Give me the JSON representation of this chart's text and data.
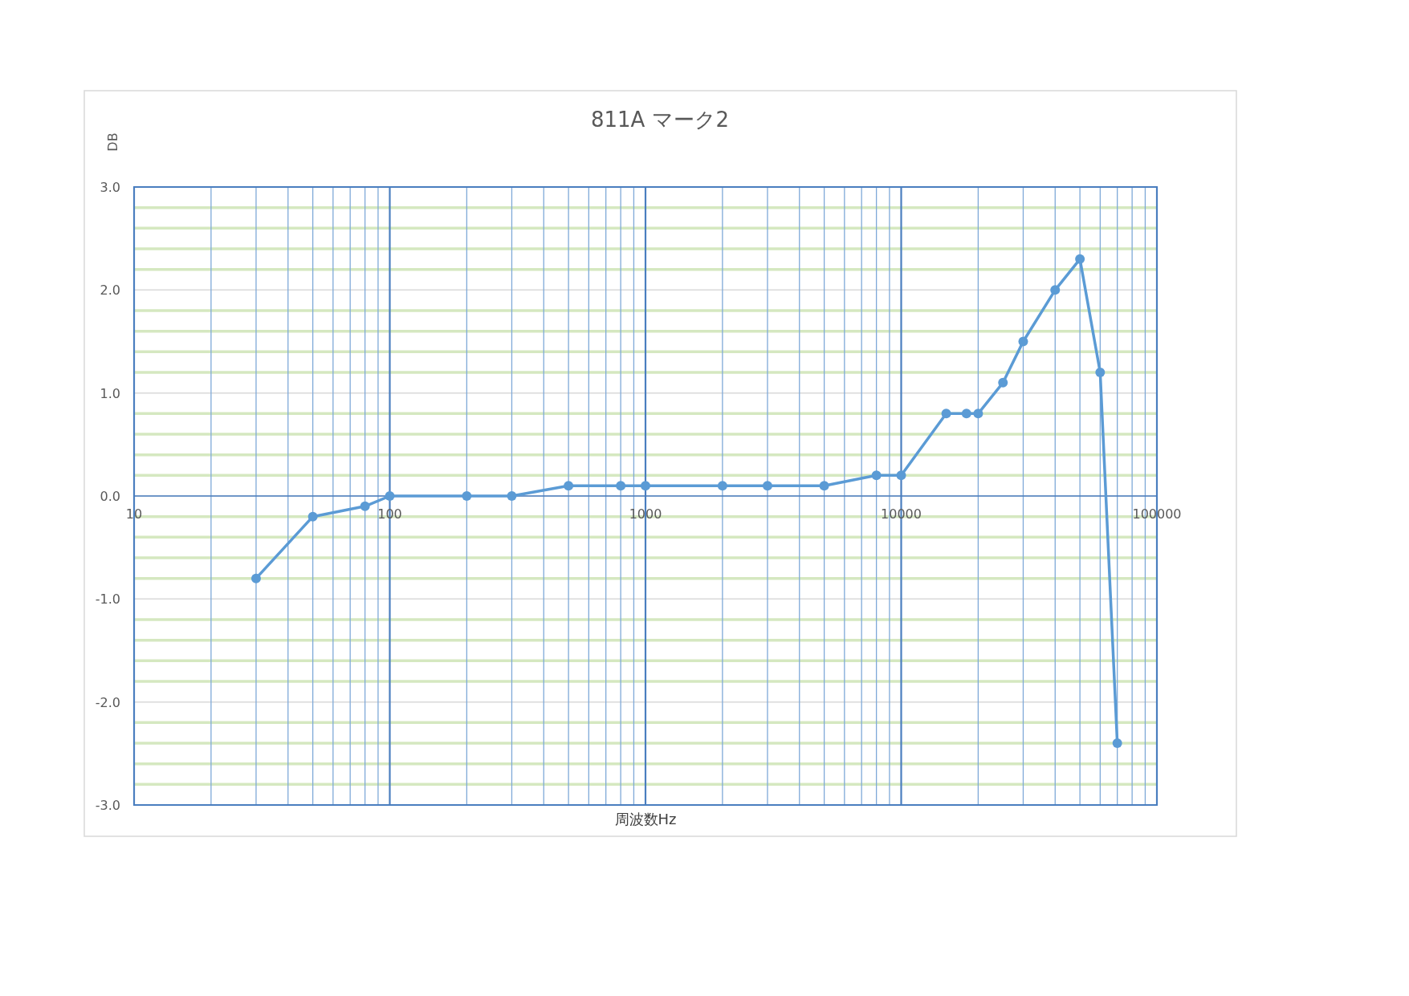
{
  "chart_data": {
    "type": "line",
    "title": "811A マーク2",
    "xlabel": "周波数Hz",
    "ylabel": "DB",
    "log": "x",
    "grid": true,
    "marker": "circle",
    "line_style": "solid",
    "xlim": [
      10,
      100000
    ],
    "xticks": [
      10,
      {
        "value": 20,
        "label": null
      },
      {
        "value": 30,
        "label": null
      },
      {
        "value": 40,
        "label": null
      },
      {
        "value": 50,
        "label": null
      },
      {
        "value": 60,
        "label": null
      },
      {
        "value": 70,
        "label": null
      },
      {
        "value": 80,
        "label": null
      },
      {
        "value": 90,
        "label": null
      },
      100,
      {
        "value": 200,
        "label": null
      },
      {
        "value": 300,
        "label": null
      },
      {
        "value": 400,
        "label": null
      },
      {
        "value": 500,
        "label": null
      },
      {
        "value": 600,
        "label": null
      },
      {
        "value": 700,
        "label": null
      },
      {
        "value": 800,
        "label": null
      },
      {
        "value": 900,
        "label": null
      },
      1000,
      {
        "value": 2000,
        "label": null
      },
      {
        "value": 3000,
        "label": null
      },
      {
        "value": 4000,
        "label": null
      },
      {
        "value": 5000,
        "label": null
      },
      {
        "value": 6000,
        "label": null
      },
      {
        "value": 7000,
        "label": null
      },
      {
        "value": 8000,
        "label": null
      },
      {
        "value": 9000,
        "label": null
      },
      10000,
      {
        "value": 20000,
        "label": null
      },
      {
        "value": 30000,
        "label": null
      },
      {
        "value": 40000,
        "label": null
      },
      {
        "value": 50000,
        "label": null
      },
      {
        "value": 60000,
        "label": null
      },
      {
        "value": 70000,
        "label": null
      },
      {
        "value": 80000,
        "label": null
      },
      {
        "value": 90000,
        "label": null
      },
      100000
    ],
    "ylim": [
      -3,
      3
    ],
    "yticks": [
      {
        "value": 3,
        "label": "3.0"
      },
      {
        "value": 2,
        "label": "2.0"
      },
      {
        "value": 1,
        "label": "1.0"
      },
      {
        "value": 0,
        "label": "0.0"
      },
      {
        "value": -1,
        "label": "-1.0"
      },
      {
        "value": -2,
        "label": "-2.0"
      },
      {
        "value": -3,
        "label": "-3.0"
      }
    ],
    "x": [
      30,
      50,
      80,
      100,
      200,
      300,
      500,
      800,
      1000,
      2000,
      3000,
      5000,
      8000,
      10000,
      15000,
      18000,
      20000,
      25000,
      30000,
      40000,
      50000,
      60000,
      70000
    ],
    "series": [
      {
        "color": "#5b9bd5",
        "values": [
          -0.8,
          -0.2,
          -0.1,
          0,
          0,
          0,
          0.1,
          0.1,
          0.1,
          0.1,
          0.1,
          0.1,
          0.2,
          0.2,
          0.8,
          0.8,
          0.8,
          1.1,
          1.5,
          2.0,
          2.3,
          1.2,
          -2.4
        ]
      }
    ]
  }
}
